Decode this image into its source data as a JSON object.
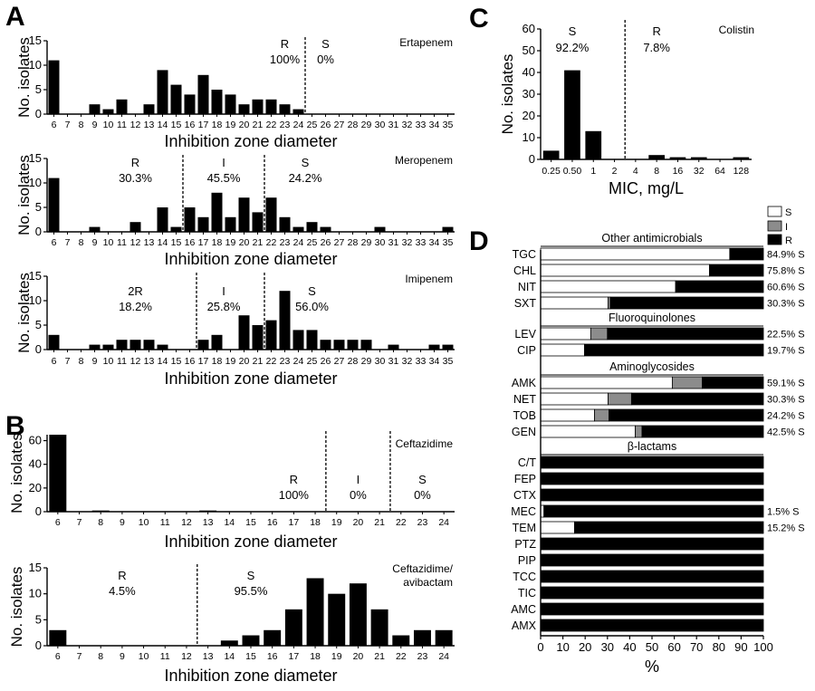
{
  "figure": {
    "panel_letters": [
      "A",
      "B",
      "C",
      "D"
    ]
  },
  "chart_data": [
    {
      "panel": "A",
      "type": "bar",
      "title": "Ertapenem",
      "xlabel": "Inhibition zone diameter",
      "ylabel": "No. isolates",
      "ylim": [
        0,
        15
      ],
      "yticks": [
        0,
        5,
        10,
        15
      ],
      "categories": [
        "6",
        "7",
        "8",
        "9",
        "10",
        "11",
        "12",
        "13",
        "14",
        "15",
        "16",
        "17",
        "18",
        "19",
        "20",
        "21",
        "22",
        "23",
        "24",
        "25",
        "26",
        "27",
        "28",
        "29",
        "30",
        "31",
        "32",
        "33",
        "34",
        "35"
      ],
      "values": [
        11,
        0,
        0,
        2,
        1,
        3,
        0,
        2,
        9,
        6,
        4,
        8,
        5,
        4,
        2,
        3,
        3,
        2,
        1,
        0,
        0,
        0,
        0,
        0,
        0,
        0,
        0,
        0,
        0,
        0
      ],
      "cutoffs": [
        {
          "between": [
            "24",
            "25"
          ]
        }
      ],
      "annotations": [
        {
          "label": "R",
          "value": "100%",
          "col": "23"
        },
        {
          "label": "S",
          "value": "0%",
          "col": "26"
        }
      ]
    },
    {
      "panel": "A",
      "type": "bar",
      "title": "Meropenem",
      "xlabel": "Inhibition zone diameter",
      "ylabel": "No. isolates",
      "ylim": [
        0,
        15
      ],
      "yticks": [
        0,
        5,
        10,
        15
      ],
      "categories": [
        "6",
        "7",
        "8",
        "9",
        "10",
        "11",
        "12",
        "13",
        "14",
        "15",
        "16",
        "17",
        "18",
        "19",
        "20",
        "21",
        "22",
        "23",
        "24",
        "25",
        "26",
        "27",
        "28",
        "29",
        "30",
        "31",
        "32",
        "33",
        "34",
        "35"
      ],
      "values": [
        11,
        0,
        0,
        1,
        0,
        0,
        2,
        0,
        5,
        1,
        5,
        3,
        8,
        3,
        7,
        4,
        7,
        3,
        1,
        2,
        1,
        0,
        0,
        0,
        1,
        0,
        0,
        0,
        0,
        1
      ],
      "cutoffs": [
        {
          "between": [
            "15",
            "16"
          ]
        },
        {
          "between": [
            "21",
            "22"
          ]
        }
      ],
      "annotations": [
        {
          "label": "R",
          "value": "30.3%",
          "col": "12"
        },
        {
          "label": "I",
          "value": "45.5%",
          "col": "18.5"
        },
        {
          "label": "S",
          "value": "24.2%",
          "col": "24.5"
        }
      ]
    },
    {
      "panel": "A",
      "type": "bar",
      "title": "Imipenem",
      "xlabel": "Inhibition zone diameter",
      "ylabel": "No. isolates",
      "ylim": [
        0,
        15
      ],
      "yticks": [
        0,
        5,
        10,
        15
      ],
      "categories": [
        "6",
        "7",
        "8",
        "9",
        "10",
        "11",
        "12",
        "13",
        "14",
        "15",
        "16",
        "17",
        "18",
        "19",
        "20",
        "21",
        "22",
        "23",
        "24",
        "25",
        "26",
        "27",
        "28",
        "29",
        "30",
        "31",
        "32",
        "33",
        "34",
        "35"
      ],
      "values": [
        3,
        0,
        0,
        1,
        1,
        2,
        2,
        2,
        1,
        0,
        0,
        2,
        3,
        0,
        7,
        5,
        6,
        12,
        4,
        4,
        2,
        2,
        2,
        2,
        0,
        1,
        0,
        0,
        1,
        1
      ],
      "cutoffs": [
        {
          "between": [
            "16",
            "17"
          ]
        },
        {
          "between": [
            "21",
            "22"
          ]
        }
      ],
      "annotations": [
        {
          "label": "2R",
          "value": "18.2%",
          "col": "12"
        },
        {
          "label": "I",
          "value": "25.8%",
          "col": "18.5"
        },
        {
          "label": "S",
          "value": "56.0%",
          "col": "25"
        }
      ]
    },
    {
      "panel": "B",
      "type": "bar",
      "title": "Ceftazidime",
      "xlabel": "Inhibition zone diameter",
      "ylabel": "No. isolates",
      "ylim": [
        0,
        65
      ],
      "yticks": [
        0,
        20,
        40,
        60
      ],
      "categories": [
        "6",
        "7",
        "8",
        "9",
        "10",
        "11",
        "12",
        "13",
        "14",
        "15",
        "16",
        "17",
        "18",
        "19",
        "20",
        "21",
        "22",
        "23",
        "24"
      ],
      "values": [
        65,
        0,
        1,
        0,
        0,
        0,
        0,
        1,
        0,
        0,
        0,
        0,
        0,
        0,
        0,
        0,
        0,
        0,
        0
      ],
      "cutoffs": [
        {
          "between": [
            "18",
            "19"
          ]
        },
        {
          "between": [
            "21",
            "22"
          ]
        }
      ],
      "annotations": [
        {
          "label": "R",
          "value": "100%",
          "col": "17"
        },
        {
          "label": "I",
          "value": "0%",
          "col": "20"
        },
        {
          "label": "S",
          "value": "0%",
          "col": "23"
        }
      ]
    },
    {
      "panel": "B",
      "type": "bar",
      "title": "Ceftazidime/ avibactam",
      "xlabel": "Inhibition zone diameter",
      "ylabel": "No. isolates",
      "ylim": [
        0,
        15
      ],
      "yticks": [
        0,
        5,
        10,
        15
      ],
      "categories": [
        "6",
        "7",
        "8",
        "9",
        "10",
        "11",
        "12",
        "13",
        "14",
        "15",
        "16",
        "17",
        "18",
        "19",
        "20",
        "21",
        "22",
        "23",
        "24"
      ],
      "values": [
        3,
        0,
        0,
        0,
        0,
        0,
        0,
        0,
        1,
        2,
        3,
        7,
        13,
        10,
        12,
        7,
        2,
        3,
        3
      ],
      "cutoffs": [
        {
          "between": [
            "12",
            "13"
          ]
        }
      ],
      "annotations": [
        {
          "label": "R",
          "value": "4.5%",
          "col": "9"
        },
        {
          "label": "S",
          "value": "95.5%",
          "col": "15"
        }
      ]
    },
    {
      "panel": "C",
      "type": "bar",
      "title": "Colistin",
      "xlabel": "MIC, mg/L",
      "ylabel": "No. isolates",
      "ylim": [
        0,
        60
      ],
      "yticks": [
        0,
        10,
        20,
        30,
        40,
        50,
        60
      ],
      "categories": [
        "0.25",
        "0.50",
        "1",
        "2",
        "4",
        "8",
        "16",
        "32",
        "64",
        "128"
      ],
      "values": [
        4,
        41,
        13,
        0,
        0,
        2,
        1,
        1,
        0,
        1
      ],
      "cutoffs": [
        {
          "between": [
            "2",
            "4"
          ]
        }
      ],
      "annotations": [
        {
          "label": "S",
          "value": "92.2%",
          "col": "0.50"
        },
        {
          "label": "R",
          "value": "7.8%",
          "col": "8"
        }
      ]
    },
    {
      "panel": "D",
      "type": "bar",
      "orientation": "horizontal-stacked",
      "xlabel": "%",
      "xlim": [
        0,
        100
      ],
      "xticks": [
        0,
        10,
        20,
        30,
        40,
        50,
        60,
        70,
        80,
        90,
        100
      ],
      "legend": [
        "S",
        "I",
        "R"
      ],
      "legend_position": "top-right",
      "colors": {
        "S": "#ffffff",
        "I": "#8c8c8c",
        "R": "#000000"
      },
      "groups": [
        {
          "name": "Other antimicrobials",
          "rows": [
            {
              "label": "TGC",
              "S": 84.9,
              "I": 0,
              "R": 15.1,
              "note": "84.9% S"
            },
            {
              "label": "CHL",
              "S": 75.8,
              "I": 0,
              "R": 24.2,
              "note": "75.8% S"
            },
            {
              "label": "NIT",
              "S": 60.6,
              "I": 0,
              "R": 39.4,
              "note": "60.6% S"
            },
            {
              "label": "SXT",
              "S": 30.3,
              "I": 1.0,
              "R": 68.7,
              "note": "30.3% S"
            }
          ]
        },
        {
          "name": "Fluoroquinolones",
          "rows": [
            {
              "label": "LEV",
              "S": 22.5,
              "I": 7.5,
              "R": 70.0,
              "note": "22.5% S"
            },
            {
              "label": "CIP",
              "S": 19.7,
              "I": 0,
              "R": 80.3,
              "note": "19.7% S"
            }
          ]
        },
        {
          "name": "Aminoglycosides",
          "rows": [
            {
              "label": "AMK",
              "S": 59.1,
              "I": 13.5,
              "R": 27.4,
              "note": "59.1% S"
            },
            {
              "label": "NET",
              "S": 30.3,
              "I": 10.5,
              "R": 59.2,
              "note": "30.3% S"
            },
            {
              "label": "TOB",
              "S": 24.2,
              "I": 6.5,
              "R": 69.3,
              "note": "24.2% S"
            },
            {
              "label": "GEN",
              "S": 42.5,
              "I": 3.0,
              "R": 54.5,
              "note": "42.5% S"
            }
          ]
        },
        {
          "name": "β-lactams",
          "rows": [
            {
              "label": "C/T",
              "S": 0,
              "I": 0,
              "R": 100,
              "note": ""
            },
            {
              "label": "FEP",
              "S": 0,
              "I": 0,
              "R": 100,
              "note": ""
            },
            {
              "label": "CTX",
              "S": 0,
              "I": 0,
              "R": 100,
              "note": ""
            },
            {
              "label": "MEC",
              "S": 1.5,
              "I": 0,
              "R": 98.5,
              "note": "1.5% S"
            },
            {
              "label": "TEM",
              "S": 15.2,
              "I": 0,
              "R": 84.8,
              "note": "15.2% S"
            },
            {
              "label": "PTZ",
              "S": 0,
              "I": 0,
              "R": 100,
              "note": ""
            },
            {
              "label": "PIP",
              "S": 0,
              "I": 0,
              "R": 100,
              "note": ""
            },
            {
              "label": "TCC",
              "S": 0,
              "I": 0,
              "R": 100,
              "note": ""
            },
            {
              "label": "TIC",
              "S": 0,
              "I": 0,
              "R": 100,
              "note": ""
            },
            {
              "label": "AMC",
              "S": 0,
              "I": 0,
              "R": 100,
              "note": ""
            },
            {
              "label": "AMX",
              "S": 0,
              "I": 0,
              "R": 100,
              "note": ""
            }
          ]
        }
      ]
    }
  ]
}
